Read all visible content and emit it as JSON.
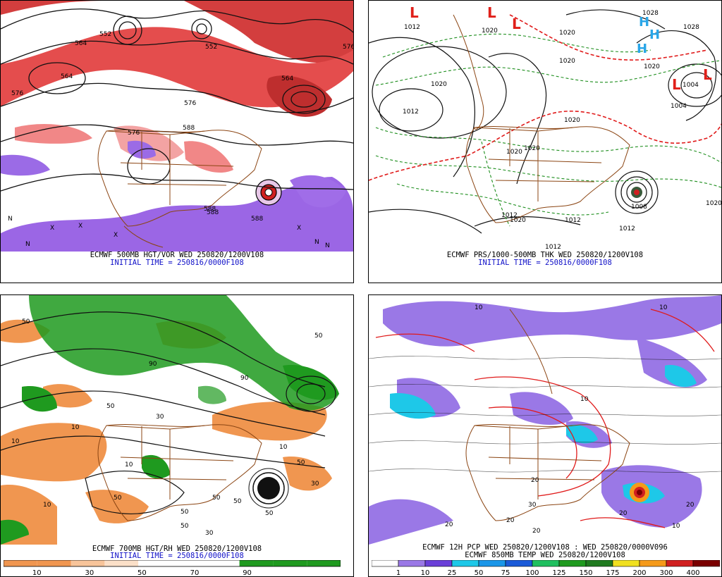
{
  "panels": [
    {
      "id": "p500",
      "caption": "ECMWF 500MB HGT/VOR WED 250820/1200V108",
      "init": "INITIAL TIME = 250816/0000F108",
      "contour_labels": [
        "552",
        "564",
        "576",
        "588",
        "576",
        "564",
        "552",
        "564",
        "576",
        "588",
        "588",
        "588",
        "576"
      ],
      "symbols": [
        "X",
        "X",
        "X",
        "X",
        "N",
        "N",
        "N",
        "N"
      ]
    },
    {
      "id": "pprs",
      "caption": "ECMWF PRS/1000-500MB THK WED 250820/1200V108",
      "init": "INITIAL TIME = 250816/0000F108",
      "contour_labels": [
        "1012",
        "1020",
        "1020",
        "1012",
        "1020",
        "1020",
        "1020",
        "1020",
        "1020",
        "1004",
        "1004",
        "1008",
        "1012",
        "1012",
        "1012",
        "1020",
        "1028",
        "1020",
        "1012",
        "1028",
        "1020"
      ],
      "low_symbols": [
        "L",
        "L",
        "L",
        "L",
        "L"
      ],
      "high_symbols": [
        "H",
        "H",
        "H"
      ]
    },
    {
      "id": "p700",
      "caption": "ECMWF 700MB HGT/RH WED 250820/1200V108",
      "init": "INITIAL TIME = 250816/0000F108",
      "contour_labels": [
        "50",
        "10",
        "50",
        "30",
        "10",
        "50",
        "90",
        "10",
        "50",
        "30",
        "10",
        "50",
        "90",
        "50",
        "50",
        "50",
        "10",
        "50",
        "30",
        "50"
      ],
      "colorbar_labels": [
        "10",
        "30",
        "50",
        "70",
        "90"
      ]
    },
    {
      "id": "ppcp",
      "caption": "ECMWF 12H PCP WED 250820/1200V108 : WED 250820/0000V096",
      "caption2": "ECMWF 850MB TEMP WED 250820/1200V108",
      "contour_labels": [
        "10",
        "20",
        "20",
        "10",
        "30",
        "20",
        "20",
        "20",
        "10",
        "20",
        "10"
      ],
      "colorbar_labels": [
        "1",
        "10",
        "25",
        "50",
        "75",
        "100",
        "125",
        "150",
        "175",
        "200",
        "300",
        "400"
      ]
    }
  ],
  "colors": {
    "vorticity_red": "#d8202a",
    "vorticity_purple": "#8a4be0",
    "rh_green": "#1f9a1f",
    "rh_orange": "#f09650",
    "border_brown": "#8b4513",
    "thickness_green": "#1f8f1f",
    "thickness_red": "#e01a1a"
  }
}
